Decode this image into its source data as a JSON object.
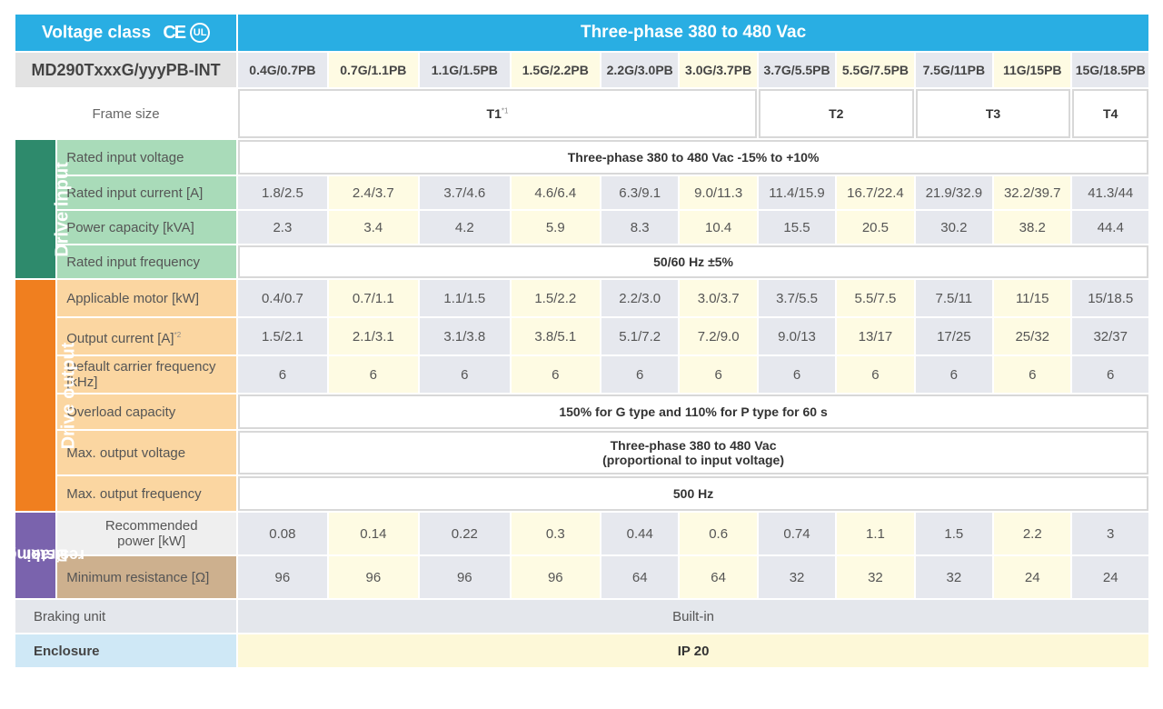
{
  "header": {
    "voltage_class_label": "Voltage class",
    "ce_mark": "CE",
    "ul_mark": "UL",
    "voltage_class_value": "Three-phase 380 to 480 Vac"
  },
  "model": {
    "label": "MD290TxxxG/yyyPB-INT",
    "columns": [
      "0.4G/0.7PB",
      "0.7G/1.1PB",
      "1.1G/1.5PB",
      "1.5G/2.2PB",
      "2.2G/3.0PB",
      "3.0G/3.7PB",
      "3.7G/5.5PB",
      "5.5G/7.5PB",
      "7.5G/11PB",
      "11G/15PB",
      "15G/18.5PB"
    ]
  },
  "frame": {
    "label": "Frame size",
    "t1": "T1",
    "t1_note": "*1",
    "t2": "T2",
    "t3": "T3",
    "t4": "T4"
  },
  "drive_input": {
    "category": "Drive input",
    "rated_input_voltage": {
      "label": "Rated input voltage",
      "value": "Three-phase 380 to 480 Vac -15% to +10%"
    },
    "rated_input_current": {
      "label": "Rated input current [A]",
      "values": [
        "1.8/2.5",
        "2.4/3.7",
        "3.7/4.6",
        "4.6/6.4",
        "6.3/9.1",
        "9.0/11.3",
        "11.4/15.9",
        "16.7/22.4",
        "21.9/32.9",
        "32.2/39.7",
        "41.3/44"
      ]
    },
    "power_capacity": {
      "label": "Power capacity [kVA]",
      "values": [
        "2.3",
        "3.4",
        "4.2",
        "5.9",
        "8.3",
        "10.4",
        "15.5",
        "20.5",
        "30.2",
        "38.2",
        "44.4"
      ]
    },
    "rated_input_frequency": {
      "label": "Rated input frequency",
      "value": "50/60 Hz ±5%"
    }
  },
  "drive_output": {
    "category": "Drive output",
    "applicable_motor": {
      "label": "Applicable motor [kW]",
      "values": [
        "0.4/0.7",
        "0.7/1.1",
        "1.1/1.5",
        "1.5/2.2",
        "2.2/3.0",
        "3.0/3.7",
        "3.7/5.5",
        "5.5/7.5",
        "7.5/11",
        "11/15",
        "15/18.5"
      ]
    },
    "output_current": {
      "label": "Output current [A]",
      "note": "*2",
      "values": [
        "1.5/2.1",
        "2.1/3.1",
        "3.1/3.8",
        "3.8/5.1",
        "5.1/7.2",
        "7.2/9.0",
        "9.0/13",
        "13/17",
        "17/25",
        "25/32",
        "32/37"
      ]
    },
    "carrier_frequency": {
      "label_line1": "Default carrier frequency",
      "label_line2": "[kHz]",
      "values": [
        "6",
        "6",
        "6",
        "6",
        "6",
        "6",
        "6",
        "6",
        "6",
        "6",
        "6"
      ]
    },
    "overload_capacity": {
      "label": "Overload capacity",
      "value": "150% for G type and 110% for P type for 60 s"
    },
    "max_output_voltage": {
      "label": "Max. output voltage",
      "value_line1": "Three-phase 380 to 480 Vac",
      "value_line2": "(proportional to input voltage)"
    },
    "max_output_frequency": {
      "label": "Max. output frequency",
      "value": "500 Hz"
    }
  },
  "braking_resistor": {
    "category_line1": "Braking",
    "category_line2": "resistor",
    "recommended_power": {
      "label_line1": "Recommended",
      "label_line2": "power [kW]",
      "values": [
        "0.08",
        "0.14",
        "0.22",
        "0.3",
        "0.44",
        "0.6",
        "0.74",
        "1.1",
        "1.5",
        "2.2",
        "3"
      ]
    },
    "minimum_resistance": {
      "label": "Minimum resistance [Ω]",
      "values": [
        "96",
        "96",
        "96",
        "96",
        "64",
        "64",
        "32",
        "32",
        "32",
        "24",
        "24"
      ]
    }
  },
  "braking_unit": {
    "label": "Braking unit",
    "value": "Built-in"
  },
  "enclosure": {
    "label": "Enclosure",
    "value": "IP 20"
  },
  "colors": {
    "header_blue": "#29aee3",
    "drive_input_green": "#2e8a6c",
    "drive_output_orange": "#f07f1f",
    "braking_purple": "#7a63ad"
  }
}
